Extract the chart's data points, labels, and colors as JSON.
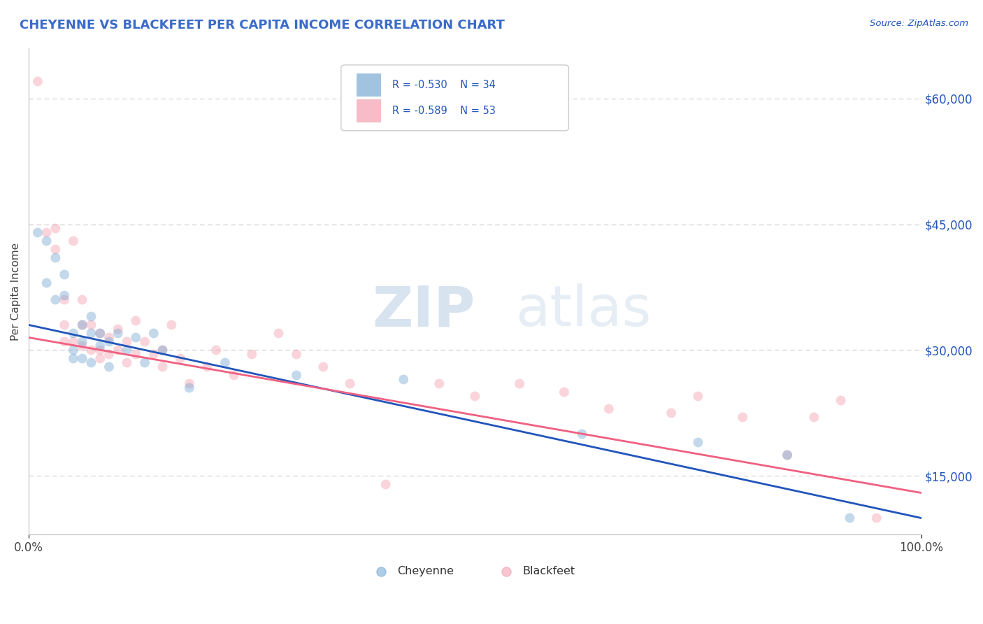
{
  "title": "CHEYENNE VS BLACKFEET PER CAPITA INCOME CORRELATION CHART",
  "title_color": "#3a6bc9",
  "source_text": "Source: ZipAtlas.com",
  "ylabel": "Per Capita Income",
  "xlim": [
    0.0,
    1.0
  ],
  "ylim": [
    8000,
    66000
  ],
  "x_tick_labels": [
    "0.0%",
    "100.0%"
  ],
  "y_tick_labels": [
    "$15,000",
    "$30,000",
    "$45,000",
    "$60,000"
  ],
  "y_tick_values": [
    15000,
    30000,
    45000,
    60000
  ],
  "legend_r_cheyenne": "R = -0.530",
  "legend_n_cheyenne": "N = 34",
  "legend_r_blackfeet": "R = -0.589",
  "legend_n_blackfeet": "N = 53",
  "cheyenne_color": "#7baad4",
  "blackfeet_color": "#f4a0b0",
  "cheyenne_line_color": "#2255bb",
  "blackfeet_line_color": "#f06080",
  "background_color": "#ffffff",
  "grid_color": "#cccccc",
  "cheyenne_x": [
    0.01,
    0.02,
    0.02,
    0.03,
    0.03,
    0.04,
    0.04,
    0.05,
    0.05,
    0.05,
    0.06,
    0.06,
    0.06,
    0.07,
    0.07,
    0.07,
    0.08,
    0.08,
    0.09,
    0.09,
    0.1,
    0.11,
    0.12,
    0.13,
    0.14,
    0.15,
    0.18,
    0.22,
    0.3,
    0.42,
    0.62,
    0.75,
    0.85,
    0.92
  ],
  "cheyenne_y": [
    44000,
    43000,
    38000,
    41000,
    36000,
    39000,
    36500,
    32000,
    30000,
    29000,
    33000,
    31000,
    29000,
    34000,
    32000,
    28500,
    32000,
    30500,
    31000,
    28000,
    32000,
    30000,
    31500,
    28500,
    32000,
    30000,
    25500,
    28500,
    27000,
    26500,
    20000,
    19000,
    17500,
    10000
  ],
  "blackfeet_x": [
    0.01,
    0.02,
    0.03,
    0.03,
    0.04,
    0.04,
    0.04,
    0.05,
    0.05,
    0.06,
    0.06,
    0.06,
    0.07,
    0.07,
    0.08,
    0.08,
    0.08,
    0.09,
    0.09,
    0.1,
    0.1,
    0.11,
    0.11,
    0.12,
    0.12,
    0.13,
    0.14,
    0.15,
    0.15,
    0.16,
    0.17,
    0.18,
    0.2,
    0.21,
    0.23,
    0.25,
    0.28,
    0.3,
    0.33,
    0.36,
    0.4,
    0.46,
    0.5,
    0.55,
    0.6,
    0.65,
    0.72,
    0.75,
    0.8,
    0.85,
    0.88,
    0.91,
    0.95
  ],
  "blackfeet_y": [
    62000,
    44000,
    44500,
    42000,
    36000,
    33000,
    31000,
    43000,
    31000,
    36000,
    33000,
    30500,
    33000,
    30000,
    32000,
    30000,
    29000,
    31500,
    29500,
    32500,
    30000,
    31000,
    28500,
    33500,
    29500,
    31000,
    29500,
    30000,
    28000,
    33000,
    29000,
    26000,
    28000,
    30000,
    27000,
    29500,
    32000,
    29500,
    28000,
    26000,
    14000,
    26000,
    24500,
    26000,
    25000,
    23000,
    22500,
    24500,
    22000,
    17500,
    22000,
    24000,
    10000
  ],
  "cheyenne_label": "Cheyenne",
  "blackfeet_label": "Blackfeet",
  "marker_size": 100,
  "marker_alpha": 0.45
}
